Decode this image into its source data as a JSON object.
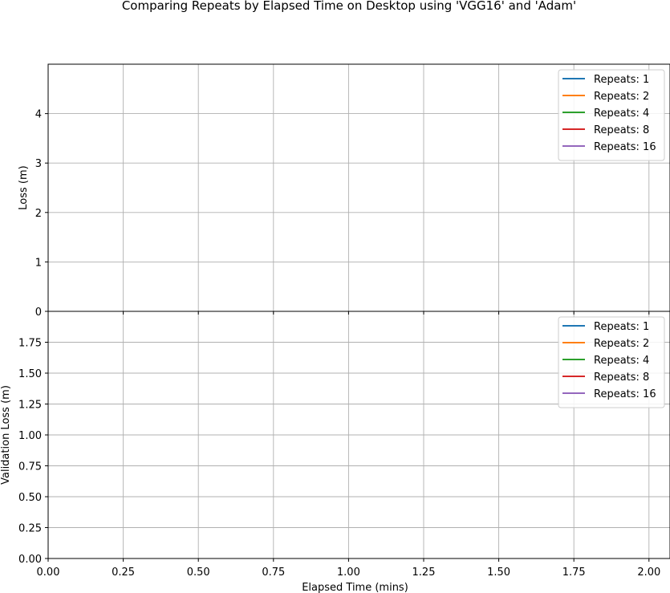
{
  "figure": {
    "title": "Comparing Repeats by Elapsed Time on Desktop using 'VGG16' and 'Adam'"
  },
  "chart_data": [
    {
      "type": "line",
      "id": "loss",
      "ylabel": "Loss (m)",
      "xlabel": "",
      "xlim": [
        0,
        2.07
      ],
      "ylim": [
        0,
        5
      ],
      "x_ticks": [
        0,
        0.25,
        0.5,
        0.75,
        1.0,
        1.25,
        1.5,
        1.75,
        2.0
      ],
      "y_ticks": [
        0,
        1,
        2,
        3,
        4
      ],
      "y_tick_labels": [
        "0",
        "1",
        "2",
        "3",
        "4"
      ],
      "grid": true,
      "legend": "upper right",
      "series": [
        {
          "name": "Repeats: 1",
          "color": "#1f77b4",
          "x": [],
          "y": []
        },
        {
          "name": "Repeats: 2",
          "color": "#ff7f0e",
          "x": [],
          "y": []
        },
        {
          "name": "Repeats: 4",
          "color": "#2ca02c",
          "x": [],
          "y": []
        },
        {
          "name": "Repeats: 8",
          "color": "#d62728",
          "x": [],
          "y": []
        },
        {
          "name": "Repeats: 16",
          "color": "#9467bd",
          "x": [],
          "y": []
        }
      ]
    },
    {
      "type": "line",
      "id": "val_loss",
      "ylabel": "Validation Loss (m)",
      "xlabel": "Elapsed Time (mins)",
      "xlim": [
        0,
        2.07
      ],
      "ylim": [
        0,
        2.0
      ],
      "x_ticks": [
        0,
        0.25,
        0.5,
        0.75,
        1.0,
        1.25,
        1.5,
        1.75,
        2.0
      ],
      "x_tick_labels": [
        "0.00",
        "0.25",
        "0.50",
        "0.75",
        "1.00",
        "1.25",
        "1.50",
        "1.75",
        "2.00"
      ],
      "y_ticks": [
        0,
        0.25,
        0.5,
        0.75,
        1.0,
        1.25,
        1.5,
        1.75
      ],
      "y_tick_labels": [
        "0.00",
        "0.25",
        "0.50",
        "0.75",
        "1.00",
        "1.25",
        "1.50",
        "1.75"
      ],
      "grid": true,
      "legend": "upper right",
      "series": [
        {
          "name": "Repeats: 1",
          "color": "#1f77b4",
          "x": [],
          "y": []
        },
        {
          "name": "Repeats: 2",
          "color": "#ff7f0e",
          "x": [],
          "y": []
        },
        {
          "name": "Repeats: 4",
          "color": "#2ca02c",
          "x": [],
          "y": []
        },
        {
          "name": "Repeats: 8",
          "color": "#d62728",
          "x": [],
          "y": []
        },
        {
          "name": "Repeats: 16",
          "color": "#9467bd",
          "x": [],
          "y": []
        }
      ]
    }
  ]
}
